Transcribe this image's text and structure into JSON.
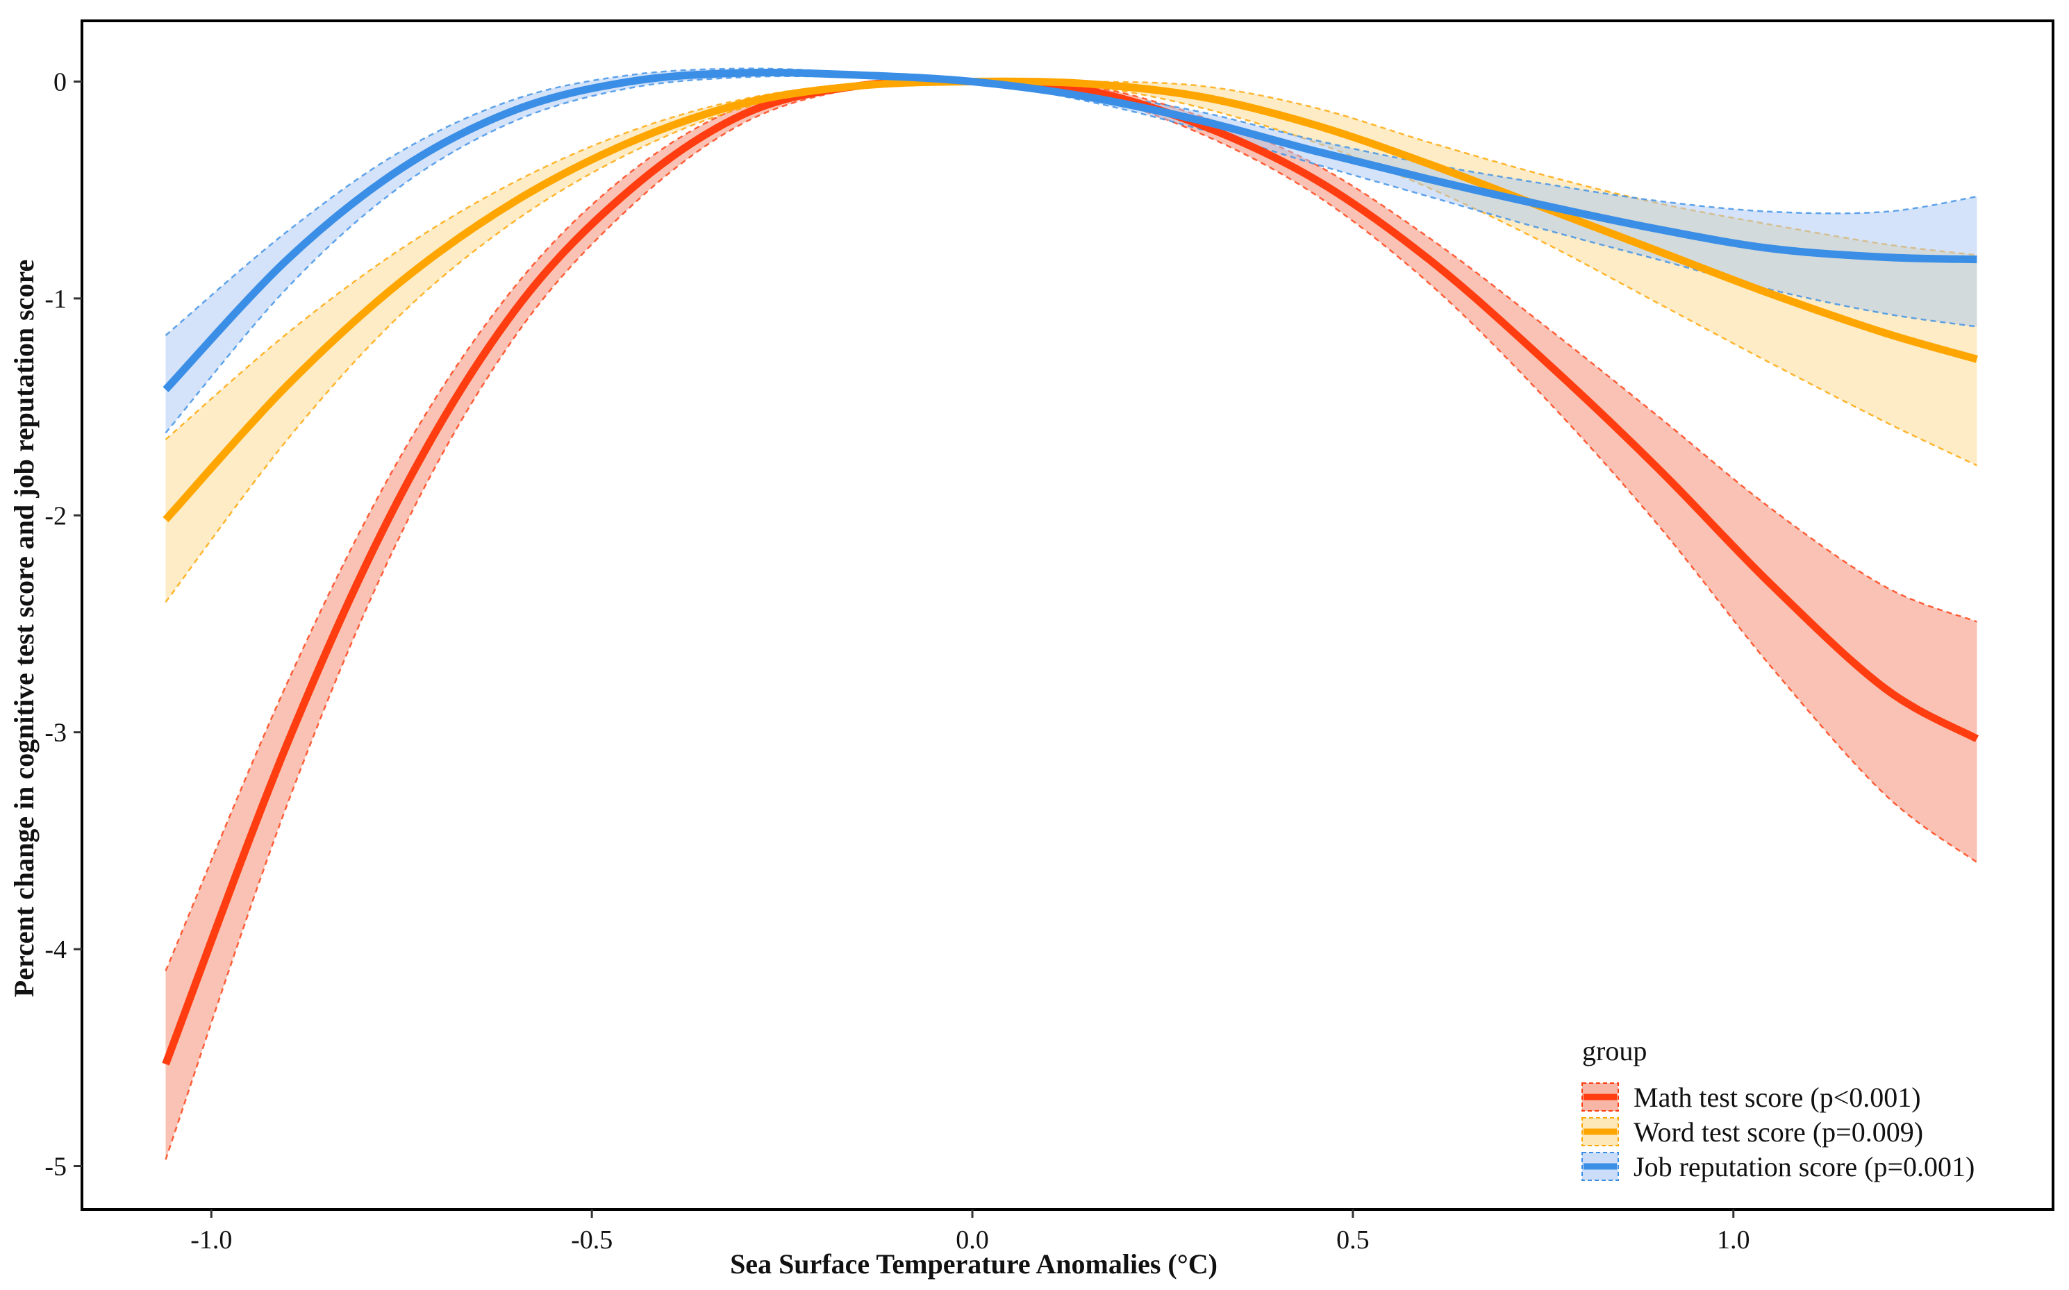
{
  "chart_data": {
    "type": "line",
    "title": "",
    "xlabel": "Sea Surface Temperature Anomalies (°C)",
    "ylabel": "Percent change in cognitive test score and job reputation score",
    "xlim": [
      -1.17,
      1.42
    ],
    "ylim": [
      -5.2,
      0.28
    ],
    "x_ticks": [
      -1.0,
      -0.5,
      0.0,
      0.5,
      1.0
    ],
    "x_tick_labels": [
      "-1.0",
      "-0.5",
      "0.0",
      "0.5",
      "1.0"
    ],
    "y_ticks": [
      0,
      -1,
      -2,
      -3,
      -4,
      -5
    ],
    "y_tick_labels": [
      "0",
      "-1",
      "-2",
      "-3",
      "-4",
      "-5"
    ],
    "grid": false,
    "legend": {
      "title": "group",
      "position": "bottom-right"
    },
    "x": [
      -1.06,
      -0.9,
      -0.75,
      -0.6,
      -0.45,
      -0.3,
      -0.15,
      0.0,
      0.15,
      0.3,
      0.45,
      0.6,
      0.75,
      0.9,
      1.05,
      1.2,
      1.32
    ],
    "series": [
      {
        "name": "Math test score (p<0.001)",
        "color": "#FF3D10",
        "band_color": "#F4866A",
        "values": [
          -4.53,
          -3.05,
          -1.9,
          -1.05,
          -0.5,
          -0.15,
          -0.02,
          0.0,
          -0.04,
          -0.2,
          -0.45,
          -0.82,
          -1.28,
          -1.78,
          -2.32,
          -2.8,
          -3.03
        ],
        "lower": [
          -4.97,
          -3.33,
          -2.08,
          -1.17,
          -0.58,
          -0.19,
          -0.03,
          0.0,
          -0.06,
          -0.24,
          -0.52,
          -0.93,
          -1.45,
          -2.04,
          -2.7,
          -3.29,
          -3.6
        ],
        "upper": [
          -4.1,
          -2.77,
          -1.72,
          -0.94,
          -0.42,
          -0.11,
          -0.01,
          0.0,
          -0.02,
          -0.16,
          -0.38,
          -0.72,
          -1.12,
          -1.54,
          -1.97,
          -2.33,
          -2.49
        ]
      },
      {
        "name": "Word test score (p=0.009)",
        "color": "#FFA500",
        "band_color": "#FCD98C",
        "values": [
          -2.02,
          -1.4,
          -0.92,
          -0.55,
          -0.28,
          -0.1,
          -0.02,
          0.0,
          -0.01,
          -0.07,
          -0.2,
          -0.38,
          -0.58,
          -0.78,
          -0.98,
          -1.16,
          -1.28
        ],
        "lower": [
          -2.4,
          -1.65,
          -1.07,
          -0.64,
          -0.33,
          -0.12,
          -0.03,
          0.0,
          -0.02,
          -0.12,
          -0.28,
          -0.49,
          -0.74,
          -1.02,
          -1.3,
          -1.57,
          -1.77
        ],
        "upper": [
          -1.65,
          -1.16,
          -0.77,
          -0.46,
          -0.23,
          -0.08,
          -0.01,
          0.0,
          0.0,
          -0.02,
          -0.12,
          -0.28,
          -0.43,
          -0.56,
          -0.66,
          -0.75,
          -0.8
        ]
      },
      {
        "name": "Job reputation score (p=0.001)",
        "color": "#3A8EE6",
        "band_color": "#A9C7F4",
        "values": [
          -1.42,
          -0.82,
          -0.4,
          -0.13,
          0.0,
          0.04,
          0.03,
          0.0,
          -0.07,
          -0.18,
          -0.32,
          -0.45,
          -0.57,
          -0.68,
          -0.77,
          -0.81,
          -0.82
        ],
        "lower": [
          -1.62,
          -0.95,
          -0.48,
          -0.18,
          -0.03,
          0.02,
          0.02,
          0.0,
          -0.09,
          -0.22,
          -0.38,
          -0.53,
          -0.68,
          -0.82,
          -0.96,
          -1.07,
          -1.13
        ],
        "upper": [
          -1.17,
          -0.69,
          -0.32,
          -0.08,
          0.03,
          0.06,
          0.04,
          0.0,
          -0.05,
          -0.14,
          -0.27,
          -0.38,
          -0.47,
          -0.55,
          -0.6,
          -0.6,
          -0.53
        ]
      }
    ]
  }
}
